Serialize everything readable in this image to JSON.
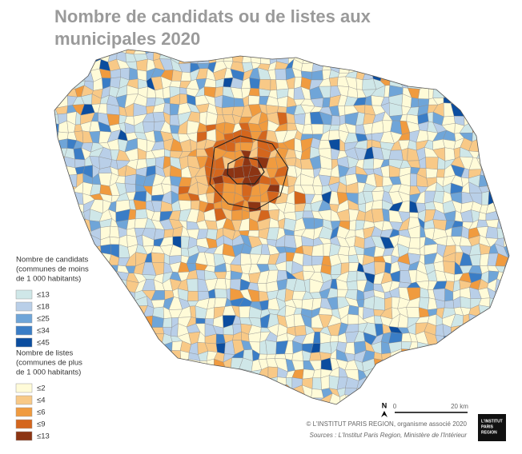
{
  "header": {
    "title_lines": [
      "Nombre de candidats ou de listes aux",
      "municipales 2020"
    ]
  },
  "legend": {
    "candidats": {
      "title_lines": [
        "Nombre de candidats",
        "(communes de moins",
        "de 1 000 habitants)"
      ],
      "items": [
        {
          "label": "≤13",
          "color": "#cfe7e8"
        },
        {
          "label": "≤18",
          "color": "#b9cfe8"
        },
        {
          "label": "≤25",
          "color": "#6fa5d8"
        },
        {
          "label": "≤34",
          "color": "#3a7dc6"
        },
        {
          "label": "≤45",
          "color": "#0b4d9f"
        }
      ]
    },
    "listes": {
      "title_lines": [
        "Nombre de listes",
        "(communes de plus",
        "de 1 000 habitants)"
      ],
      "items": [
        {
          "label": "≤2",
          "color": "#fffbd8"
        },
        {
          "label": "≤4",
          "color": "#f8c987"
        },
        {
          "label": "≤6",
          "color": "#f09b3f"
        },
        {
          "label": "≤9",
          "color": "#d4661d"
        },
        {
          "label": "≤13",
          "color": "#8c3413"
        }
      ]
    }
  },
  "scale": {
    "north": "N",
    "start": "0",
    "end": "20 km"
  },
  "footer": {
    "credit": "© L'INSTITUT PARIS REGION, organisme associé 2020",
    "sources": "Sources : L'Institut Paris Region, Ministère de l'Intérieur",
    "logo_lines": [
      "L'INSTITUT",
      "PARIS",
      "REGION"
    ]
  }
}
